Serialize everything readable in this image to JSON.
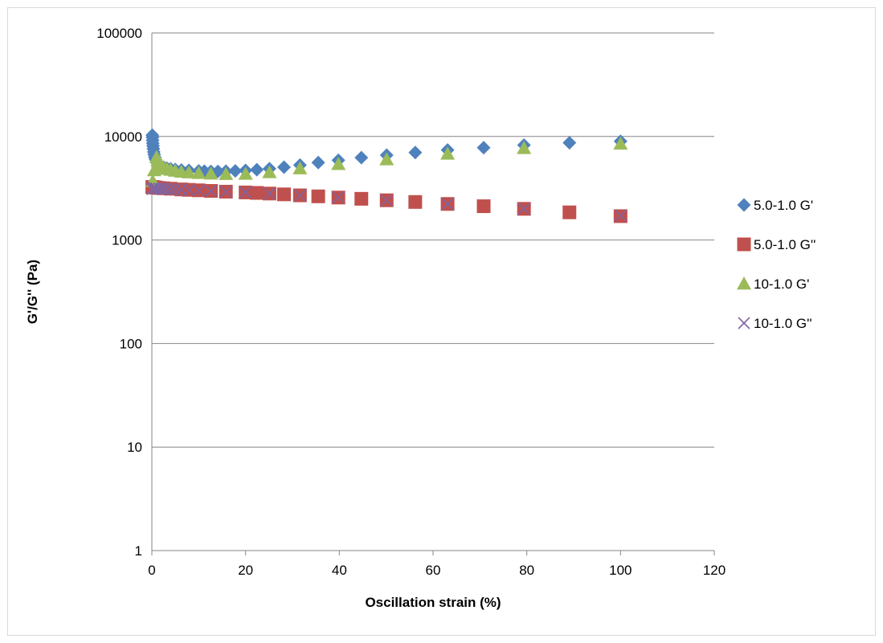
{
  "chart_data": {
    "type": "scatter",
    "title": "",
    "xlabel": "Oscillation strain (%)",
    "ylabel": "G'/G'' (Pa)",
    "xlim": [
      0,
      120
    ],
    "ylim": [
      1,
      100000
    ],
    "yscale": "log",
    "x_ticks": [
      "0",
      "20",
      "40",
      "60",
      "80",
      "100",
      "120"
    ],
    "y_ticks": [
      "1",
      "10",
      "100",
      "1000",
      "10000",
      "100000"
    ],
    "grid": "horizontal",
    "legend_position": "right",
    "series": [
      {
        "name": "5.0-1.0 G'",
        "marker": "diamond",
        "color": "#4f81bd",
        "x": [
          0.1,
          0.13,
          0.16,
          0.2,
          0.25,
          0.32,
          0.4,
          0.5,
          0.63,
          0.79,
          1.0,
          1.26,
          1.58,
          2.0,
          2.5,
          3.2,
          4.0,
          5.0,
          6.3,
          7.9,
          10.0,
          11.2,
          12.6,
          14.1,
          15.8,
          17.8,
          20.0,
          22.4,
          25.1,
          28.2,
          31.6,
          35.5,
          39.8,
          44.7,
          50.1,
          56.2,
          63.1,
          70.8,
          79.4,
          89.1,
          100.0
        ],
        "y": [
          10300,
          9800,
          9200,
          8600,
          8100,
          7600,
          7100,
          6700,
          6300,
          6000,
          5700,
          5500,
          5300,
          5150,
          5050,
          4950,
          4870,
          4800,
          4750,
          4700,
          4650,
          4620,
          4600,
          4600,
          4620,
          4650,
          4700,
          4780,
          4880,
          5050,
          5300,
          5600,
          5900,
          6250,
          6600,
          7000,
          7400,
          7800,
          8250,
          8700,
          9000
        ]
      },
      {
        "name": "5.0-1.0 G''",
        "marker": "square",
        "color": "#c0504d",
        "x": [
          0.1,
          0.2,
          0.4,
          0.63,
          1.0,
          1.58,
          2.5,
          4.0,
          6.3,
          7.9,
          10.0,
          12.6,
          15.8,
          20.0,
          22.4,
          25.1,
          28.2,
          31.6,
          35.5,
          39.8,
          44.7,
          50.1,
          56.2,
          63.1,
          70.8,
          79.4,
          89.1,
          100.0
        ],
        "y": [
          3250,
          3240,
          3230,
          3220,
          3200,
          3180,
          3160,
          3130,
          3080,
          3050,
          3020,
          2980,
          2930,
          2880,
          2850,
          2810,
          2760,
          2700,
          2640,
          2570,
          2500,
          2420,
          2330,
          2230,
          2120,
          2000,
          1850,
          1700
        ]
      },
      {
        "name": "10-1.0 G'",
        "marker": "triangle",
        "color": "#9bbb59",
        "x": [
          0.2,
          0.5,
          1.0,
          1.26,
          1.58,
          2.0,
          2.5,
          3.2,
          4.0,
          5.0,
          6.3,
          7.9,
          10.0,
          12.6,
          15.8,
          20.0,
          25.1,
          31.6,
          39.8,
          50.1,
          63.1,
          79.4,
          100.0
        ],
        "y": [
          3700,
          4700,
          6300,
          5900,
          5500,
          5200,
          5000,
          4850,
          4750,
          4650,
          4550,
          4480,
          4420,
          4360,
          4330,
          4350,
          4500,
          4900,
          5400,
          6000,
          6800,
          7700,
          8500
        ]
      },
      {
        "name": "10-1.0 G''",
        "marker": "x",
        "color": "#8064a2",
        "x": [
          0.1,
          0.2,
          0.4,
          0.63,
          1.0,
          1.58,
          2.0,
          2.5,
          3.2,
          4.0,
          5.0,
          6.3,
          7.9,
          10.0,
          12.6,
          15.8,
          20.0,
          25.1,
          31.6,
          39.8,
          50.1,
          63.1,
          79.4,
          100.0
        ],
        "y": [
          3100,
          3150,
          3170,
          3160,
          3150,
          3140,
          3130,
          3120,
          3110,
          3100,
          3080,
          3060,
          3040,
          3010,
          2980,
          2940,
          2880,
          2810,
          2700,
          2580,
          2420,
          2230,
          2000,
          1720
        ]
      }
    ]
  }
}
